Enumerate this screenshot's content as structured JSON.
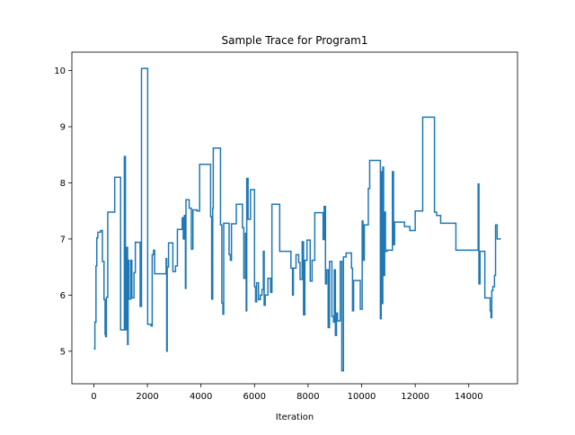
{
  "chart_data": {
    "type": "line",
    "title": "Sample Trace for Program1",
    "xlabel": "Iteration",
    "ylabel": "",
    "xlim": [
      -820,
      15820
    ],
    "ylim": [
      4.42,
      10.33
    ],
    "xticks": [
      0,
      2000,
      4000,
      6000,
      8000,
      10000,
      12000,
      14000
    ],
    "xtick_labels": [
      "0",
      "2000",
      "4000",
      "6000",
      "8000",
      "10000",
      "12000",
      "14000"
    ],
    "yticks": [
      5,
      6,
      7,
      8,
      9,
      10
    ],
    "ytick_labels": [
      "5",
      "6",
      "7",
      "8",
      "9",
      "10"
    ],
    "grid": false,
    "series": [
      {
        "color": "#1f77b4",
        "step": true,
        "points": [
          [
            0,
            5.04
          ],
          [
            40,
            5.52
          ],
          [
            80,
            6.52
          ],
          [
            110,
            7.02
          ],
          [
            150,
            7.12
          ],
          [
            250,
            7.15
          ],
          [
            320,
            6.6
          ],
          [
            380,
            5.92
          ],
          [
            420,
            5.3
          ],
          [
            440,
            5.26
          ],
          [
            470,
            5.96
          ],
          [
            520,
            7.48
          ],
          [
            780,
            8.1
          ],
          [
            1000,
            5.38
          ],
          [
            1140,
            8.47
          ],
          [
            1180,
            5.38
          ],
          [
            1230,
            6.85
          ],
          [
            1260,
            5.12
          ],
          [
            1280,
            6.62
          ],
          [
            1310,
            5.93
          ],
          [
            1380,
            6.62
          ],
          [
            1420,
            5.95
          ],
          [
            1500,
            6.4
          ],
          [
            1550,
            6.94
          ],
          [
            1730,
            5.8
          ],
          [
            1780,
            10.04
          ],
          [
            2010,
            5.48
          ],
          [
            2140,
            5.45
          ],
          [
            2180,
            6.72
          ],
          [
            2230,
            6.8
          ],
          [
            2270,
            6.38
          ],
          [
            2700,
            6.65
          ],
          [
            2720,
            5.0
          ],
          [
            2740,
            6.5
          ],
          [
            2790,
            6.93
          ],
          [
            2950,
            6.42
          ],
          [
            3050,
            6.52
          ],
          [
            3120,
            7.17
          ],
          [
            3300,
            7.38
          ],
          [
            3340,
            7.0
          ],
          [
            3380,
            7.42
          ],
          [
            3420,
            6.12
          ],
          [
            3440,
            7.7
          ],
          [
            3560,
            7.55
          ],
          [
            3640,
            6.82
          ],
          [
            3700,
            7.52
          ],
          [
            3850,
            7.5
          ],
          [
            3950,
            8.33
          ],
          [
            4360,
            7.4
          ],
          [
            4400,
            5.93
          ],
          [
            4440,
            7.55
          ],
          [
            4460,
            8.62
          ],
          [
            4730,
            7.25
          ],
          [
            4780,
            5.86
          ],
          [
            4820,
            5.66
          ],
          [
            4850,
            7.28
          ],
          [
            5050,
            6.72
          ],
          [
            5100,
            6.62
          ],
          [
            5140,
            7.27
          ],
          [
            5320,
            7.62
          ],
          [
            5550,
            7.2
          ],
          [
            5600,
            6.3
          ],
          [
            5660,
            7.1
          ],
          [
            5690,
            5.72
          ],
          [
            5710,
            8.08
          ],
          [
            5760,
            7.35
          ],
          [
            5850,
            7.88
          ],
          [
            6000,
            6.15
          ],
          [
            6040,
            5.88
          ],
          [
            6080,
            6.22
          ],
          [
            6150,
            5.92
          ],
          [
            6220,
            6.0
          ],
          [
            6280,
            6.1
          ],
          [
            6330,
            6.78
          ],
          [
            6360,
            5.82
          ],
          [
            6400,
            6.0
          ],
          [
            6500,
            6.3
          ],
          [
            6600,
            6.05
          ],
          [
            6650,
            7.62
          ],
          [
            6940,
            6.78
          ],
          [
            7360,
            6.48
          ],
          [
            7420,
            6.0
          ],
          [
            7450,
            6.48
          ],
          [
            7550,
            6.72
          ],
          [
            7650,
            6.58
          ],
          [
            7700,
            6.28
          ],
          [
            7780,
            6.95
          ],
          [
            7830,
            5.65
          ],
          [
            7880,
            6.62
          ],
          [
            7960,
            6.98
          ],
          [
            8080,
            6.25
          ],
          [
            8150,
            6.62
          ],
          [
            8250,
            7.47
          ],
          [
            8560,
            6.99
          ],
          [
            8600,
            7.58
          ],
          [
            8650,
            6.2
          ],
          [
            8690,
            6.45
          ],
          [
            8750,
            5.42
          ],
          [
            8800,
            6.6
          ],
          [
            8890,
            5.62
          ],
          [
            8950,
            5.52
          ],
          [
            8980,
            6.45
          ],
          [
            9020,
            5.28
          ],
          [
            9060,
            5.68
          ],
          [
            9100,
            5.54
          ],
          [
            9200,
            6.6
          ],
          [
            9260,
            4.65
          ],
          [
            9320,
            6.68
          ],
          [
            9420,
            6.75
          ],
          [
            9620,
            6.48
          ],
          [
            9660,
            5.72
          ],
          [
            9700,
            6.26
          ],
          [
            9950,
            5.75
          ],
          [
            10020,
            7.32
          ],
          [
            10050,
            6.62
          ],
          [
            10100,
            7.25
          ],
          [
            10250,
            7.9
          ],
          [
            10300,
            8.4
          ],
          [
            10700,
            5.58
          ],
          [
            10730,
            8.2
          ],
          [
            10760,
            5.85
          ],
          [
            10790,
            8.28
          ],
          [
            10820,
            6.35
          ],
          [
            10860,
            7.48
          ],
          [
            10890,
            6.78
          ],
          [
            10950,
            6.8
          ],
          [
            11150,
            8.2
          ],
          [
            11190,
            6.9
          ],
          [
            11230,
            7.3
          ],
          [
            11600,
            7.22
          ],
          [
            11800,
            7.15
          ],
          [
            12000,
            7.5
          ],
          [
            12280,
            9.17
          ],
          [
            12720,
            7.48
          ],
          [
            12800,
            7.42
          ],
          [
            12950,
            7.28
          ],
          [
            13520,
            6.8
          ],
          [
            14350,
            7.98
          ],
          [
            14380,
            6.2
          ],
          [
            14420,
            6.78
          ],
          [
            14600,
            5.95
          ],
          [
            14800,
            5.72
          ],
          [
            14830,
            5.6
          ],
          [
            14860,
            6.08
          ],
          [
            14900,
            6.15
          ],
          [
            14960,
            6.35
          ],
          [
            15000,
            7.25
          ],
          [
            15060,
            7.0
          ],
          [
            15200,
            7.0
          ]
        ]
      }
    ]
  }
}
